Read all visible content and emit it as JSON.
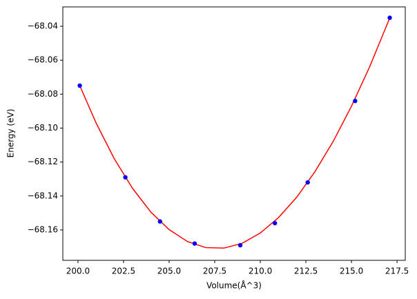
{
  "chart_data": {
    "type": "line",
    "x_label": "Volume(Å^3)",
    "y_label": "Energy (eV)",
    "xlim": [
      199.17,
      217.95
    ],
    "ylim": [
      -68.1779,
      -68.0286
    ],
    "xticks": [
      {
        "value": 200,
        "label": "200.0"
      },
      {
        "value": 202.5,
        "label": "202.5"
      },
      {
        "value": 205,
        "label": "205.0"
      },
      {
        "value": 207.5,
        "label": "207.5"
      },
      {
        "value": 210,
        "label": "210.0"
      },
      {
        "value": 212.5,
        "label": "212.5"
      },
      {
        "value": 215,
        "label": "215.0"
      },
      {
        "value": 217.5,
        "label": "217.5"
      }
    ],
    "yticks": [
      {
        "value": -68.16,
        "label": "−68.16"
      },
      {
        "value": -68.14,
        "label": "−68.14"
      },
      {
        "value": -68.12,
        "label": "−68.12"
      },
      {
        "value": -68.1,
        "label": "−68.10"
      },
      {
        "value": -68.08,
        "label": "−68.08"
      },
      {
        "value": -68.06,
        "label": "−68.06"
      },
      {
        "value": -68.04,
        "label": "−68.04"
      }
    ],
    "series": [
      {
        "style": "line",
        "color": "#ff0000",
        "x": [
          200.1,
          201,
          202,
          203,
          204,
          205,
          206,
          207,
          208,
          209,
          210,
          211,
          212,
          213,
          214,
          215,
          216,
          217,
          217.1
        ],
        "values": [
          -68.075,
          -68.0971,
          -68.1182,
          -68.1356,
          -68.1495,
          -68.1598,
          -68.1668,
          -68.1704,
          -68.1707,
          -68.1679,
          -68.1618,
          -68.1527,
          -68.1407,
          -68.1256,
          -68.1078,
          -68.0871,
          -68.0638,
          -68.0377,
          -68.035
        ]
      },
      {
        "style": "marker",
        "color": "#0000ff",
        "x": [
          200.1,
          202.6,
          204.5,
          206.4,
          208.9,
          210.8,
          212.6,
          215.2,
          217.1
        ],
        "values": [
          -68.075,
          -68.129,
          -68.155,
          -68.168,
          -68.169,
          -68.156,
          -68.132,
          -68.084,
          -68.035
        ]
      }
    ]
  }
}
